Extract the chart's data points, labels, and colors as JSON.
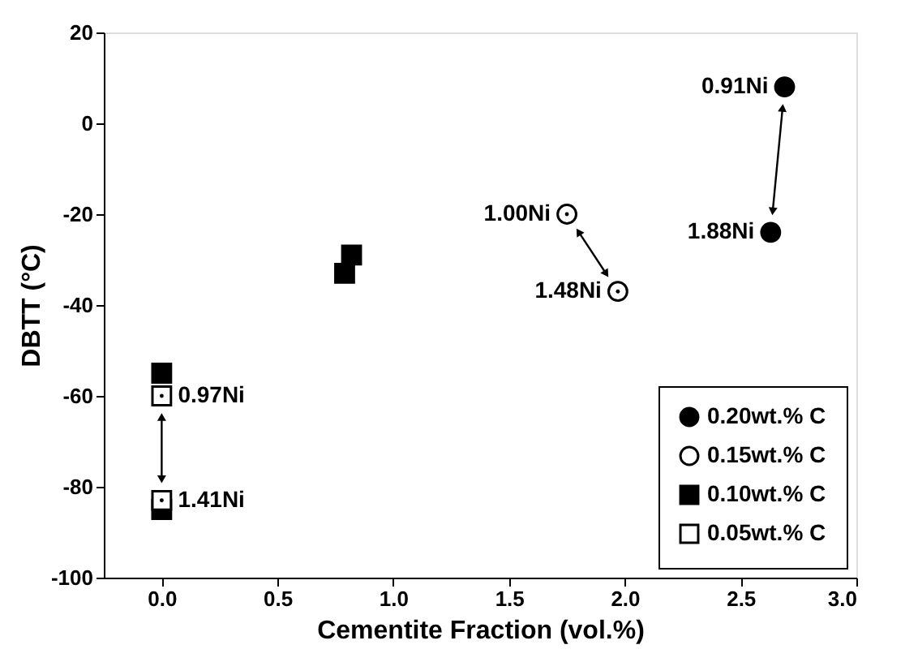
{
  "chart_data": {
    "type": "scatter",
    "xlabel": "Cementite Fraction (vol.%)",
    "ylabel": "DBTT (°C)",
    "xlim": [
      -0.25,
      3.0
    ],
    "xticks": [
      {
        "value": 0,
        "label": "0.0"
      },
      0.5,
      {
        "value": 1,
        "label": "1.0"
      },
      1.5,
      {
        "value": 2,
        "label": "2.0"
      },
      2.5,
      {
        "value": 3,
        "label": "3.0"
      }
    ],
    "ylim": [
      -100,
      20
    ],
    "yticks": [
      -100,
      -80,
      -60,
      -40,
      -20,
      0,
      20
    ],
    "grid": false,
    "legend": "bottom right",
    "series": [
      {
        "name": "0.20wt.% C",
        "color": "#000000",
        "marker": "circle",
        "x": [
          2.69,
          2.63
        ],
        "values": [
          8,
          -24
        ]
      },
      {
        "name": "0.15wt.% C",
        "color": "#000000",
        "marker": "circle",
        "x": [
          1.75,
          1.97
        ],
        "values": [
          -20,
          -37
        ]
      },
      {
        "name": "0.10wt.% C",
        "color": "#000000",
        "marker": "square",
        "x": [
          0,
          0,
          0.79,
          0.82
        ],
        "values": [
          -55,
          -85,
          -33,
          -29
        ]
      },
      {
        "name": "0.05wt.% C",
        "color": "#000000",
        "marker": "square",
        "x": [
          0,
          0
        ],
        "values": [
          -60,
          -83
        ]
      }
    ],
    "annotations": [
      {
        "text": "0.91Ni",
        "x": 2.69,
        "y": 8
      },
      {
        "text": "1.88Ni",
        "x": 2.63,
        "y": -24
      },
      {
        "text": "1.00Ni",
        "x": 1.75,
        "y": -20
      },
      {
        "text": "1.48Ni",
        "x": 1.97,
        "y": -37
      },
      {
        "text": "0.97Ni",
        "x": 0,
        "y": -60
      },
      {
        "text": "1.41Ni",
        "x": 0,
        "y": -83
      }
    ]
  }
}
